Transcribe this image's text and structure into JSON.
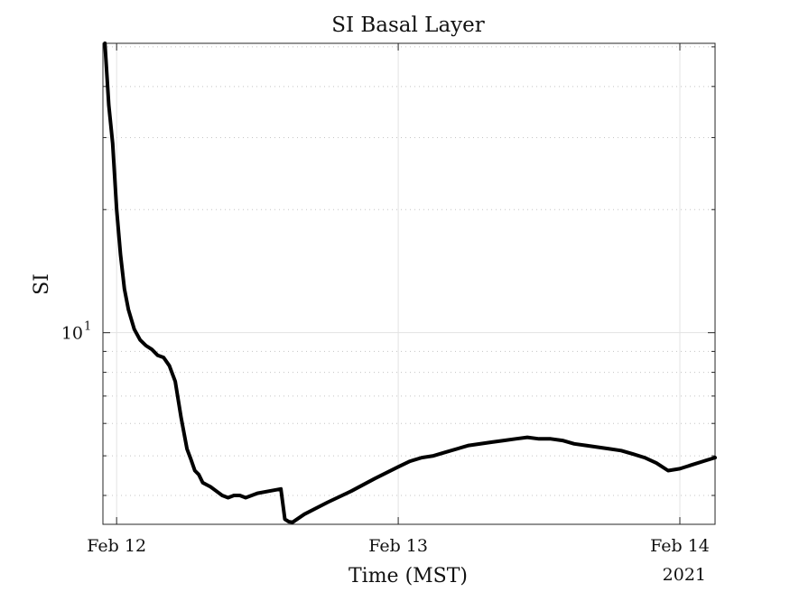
{
  "chart_data": {
    "type": "line",
    "title": "SI Basal Layer",
    "xlabel": "Time (MST)",
    "ylabel": "SI",
    "x_tick_labels": [
      "Feb 12",
      "Feb 13",
      "Feb 14"
    ],
    "x_secondary_label": "2021",
    "x_ticks": [
      "2021-02-12",
      "2021-02-13",
      "2021-02-14"
    ],
    "xlim": [
      "2021-02-11 22:50",
      "2021-02-14 03:00"
    ],
    "y_scale": "log",
    "ylim": [
      3.4,
      51
    ],
    "y_tick_base": "10",
    "y_tick_exponent": "1",
    "y_ticks": [
      10
    ],
    "grid": true,
    "minor_grid": true,
    "line_color": "#000000",
    "series": [
      {
        "x": [
          "2021-02-11 23:00",
          "2021-02-11 23:20",
          "2021-02-11 23:40",
          "2021-02-12 00:00",
          "2021-02-12 00:20",
          "2021-02-12 00:40",
          "2021-02-12 01:00",
          "2021-02-12 01:30",
          "2021-02-12 02:00",
          "2021-02-12 02:30",
          "2021-02-12 03:00",
          "2021-02-12 03:30",
          "2021-02-12 04:00",
          "2021-02-12 04:30",
          "2021-02-12 05:00",
          "2021-02-12 05:30",
          "2021-02-12 06:00",
          "2021-02-12 06:20",
          "2021-02-12 06:40",
          "2021-02-12 07:00",
          "2021-02-12 07:20",
          "2021-02-12 07:40",
          "2021-02-12 08:00",
          "2021-02-12 08:30",
          "2021-02-12 09:00",
          "2021-02-12 09:30",
          "2021-02-12 10:00",
          "2021-02-12 10:30",
          "2021-02-12 11:00",
          "2021-02-12 12:00",
          "2021-02-12 13:00",
          "2021-02-12 14:00",
          "2021-02-12 14:20",
          "2021-02-12 14:40",
          "2021-02-12 15:00",
          "2021-02-12 16:00",
          "2021-02-12 18:00",
          "2021-02-12 20:00",
          "2021-02-12 22:00",
          "2021-02-13 00:00",
          "2021-02-13 01:00",
          "2021-02-13 02:00",
          "2021-02-13 03:00",
          "2021-02-13 04:00",
          "2021-02-13 06:00",
          "2021-02-13 08:00",
          "2021-02-13 09:00",
          "2021-02-13 10:00",
          "2021-02-13 11:00",
          "2021-02-13 12:00",
          "2021-02-13 13:00",
          "2021-02-13 14:00",
          "2021-02-13 15:00",
          "2021-02-13 16:00",
          "2021-02-13 17:00",
          "2021-02-13 18:00",
          "2021-02-13 19:00",
          "2021-02-13 20:00",
          "2021-02-13 21:00",
          "2021-02-13 22:00",
          "2021-02-13 23:00",
          "2021-02-14 00:00",
          "2021-02-14 01:00",
          "2021-02-14 02:00",
          "2021-02-14 03:00"
        ],
        "y": [
          51,
          36,
          29,
          20,
          15.5,
          12.8,
          11.4,
          10.2,
          9.6,
          9.3,
          9.1,
          8.8,
          8.7,
          8.3,
          7.6,
          6.2,
          5.2,
          4.9,
          4.6,
          4.5,
          4.3,
          4.25,
          4.2,
          4.1,
          4.0,
          3.95,
          4.0,
          4.0,
          3.95,
          4.05,
          4.1,
          4.15,
          3.5,
          3.45,
          3.44,
          3.6,
          3.85,
          4.1,
          4.4,
          4.7,
          4.85,
          4.95,
          5.0,
          5.1,
          5.3,
          5.4,
          5.45,
          5.5,
          5.55,
          5.5,
          5.5,
          5.45,
          5.35,
          5.3,
          5.25,
          5.2,
          5.15,
          5.05,
          4.95,
          4.8,
          4.6,
          4.65,
          4.75,
          4.85,
          4.95
        ]
      }
    ]
  }
}
